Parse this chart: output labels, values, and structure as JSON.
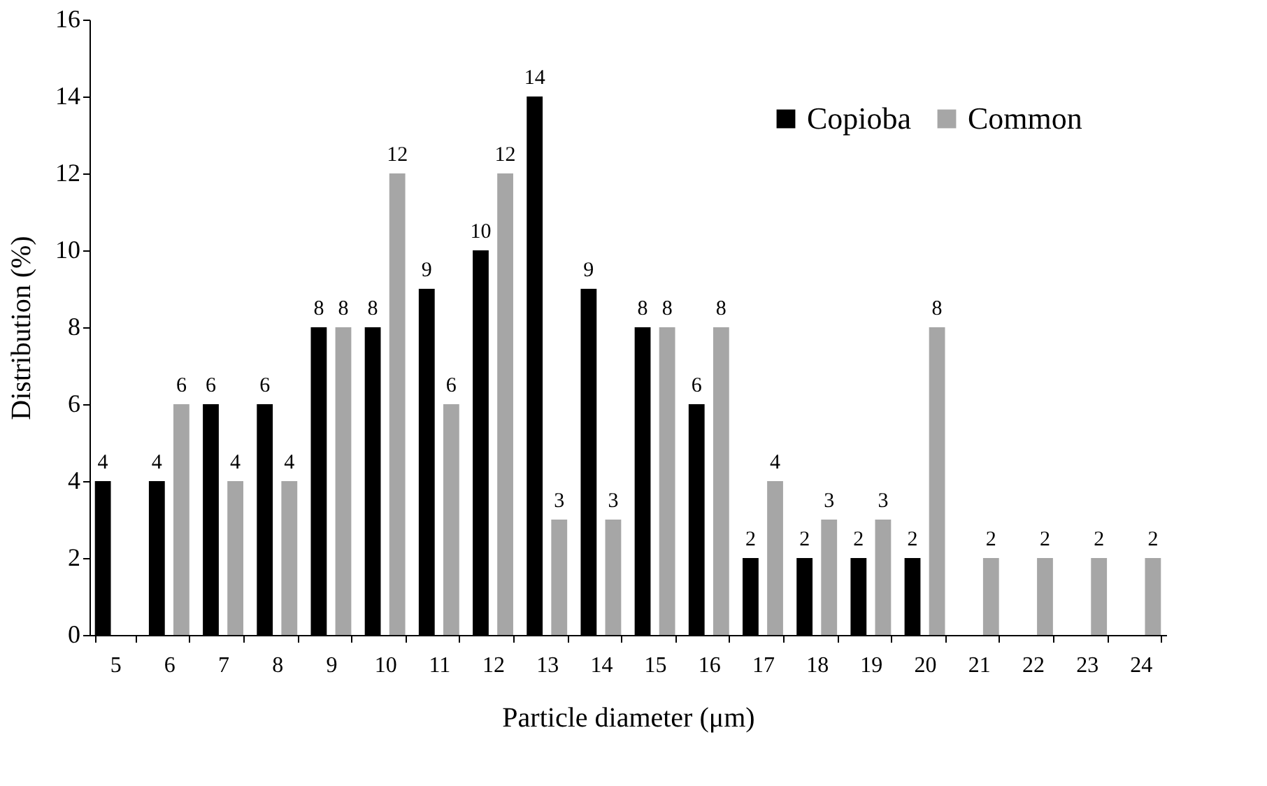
{
  "chart_data": {
    "type": "bar",
    "xlabel": "Particle diameter (μm)",
    "ylabel": "Distribution (%)",
    "categories": [
      "5",
      "6",
      "7",
      "8",
      "9",
      "10",
      "11",
      "12",
      "13",
      "14",
      "15",
      "16",
      "17",
      "18",
      "19",
      "20",
      "21",
      "22",
      "23",
      "24"
    ],
    "series": [
      {
        "name": "Copioba",
        "color": "#000000",
        "values": [
          4,
          4,
          6,
          6,
          8,
          8,
          9,
          10,
          14,
          9,
          8,
          6,
          2,
          2,
          2,
          2,
          null,
          null,
          null,
          null
        ]
      },
      {
        "name": "Common",
        "color": "#a6a6a6",
        "values": [
          null,
          6,
          4,
          4,
          8,
          12,
          6,
          12,
          3,
          3,
          8,
          8,
          4,
          3,
          3,
          8,
          2,
          2,
          2,
          2
        ]
      }
    ],
    "ylim": [
      0,
      16
    ],
    "yticks": [
      0,
      2,
      4,
      6,
      8,
      10,
      12,
      14,
      16
    ],
    "grid": false,
    "legend": "top right",
    "data_labels": true
  }
}
